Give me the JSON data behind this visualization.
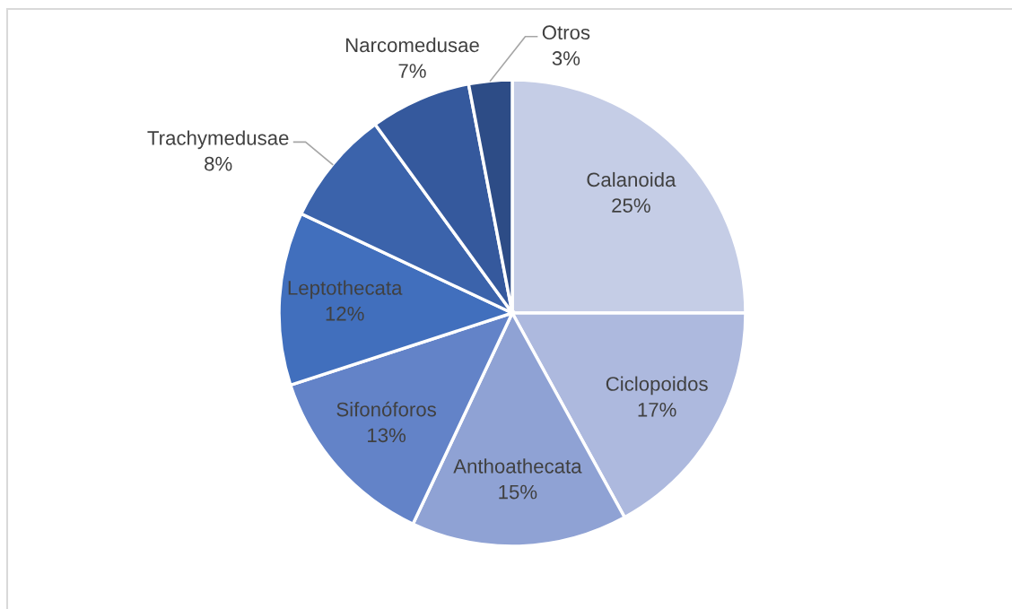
{
  "chart_data": {
    "type": "pie",
    "categories": [
      "Calanoida",
      "Ciclopoidos",
      "Anthoathecata",
      "Sifonóforos",
      "Leptothecata",
      "Trachymedusae",
      "Narcomedusae",
      "Otros"
    ],
    "values": [
      25,
      17,
      15,
      13,
      12,
      8,
      7,
      3
    ],
    "value_labels": [
      "25%",
      "17%",
      "15%",
      "13%",
      "12%",
      "8%",
      "7%",
      "3%"
    ],
    "colors": [
      "#c5cde6",
      "#adb9de",
      "#8fa2d4",
      "#6383c8",
      "#416fbd",
      "#3b63ab",
      "#35599d",
      "#2d4c86"
    ]
  }
}
